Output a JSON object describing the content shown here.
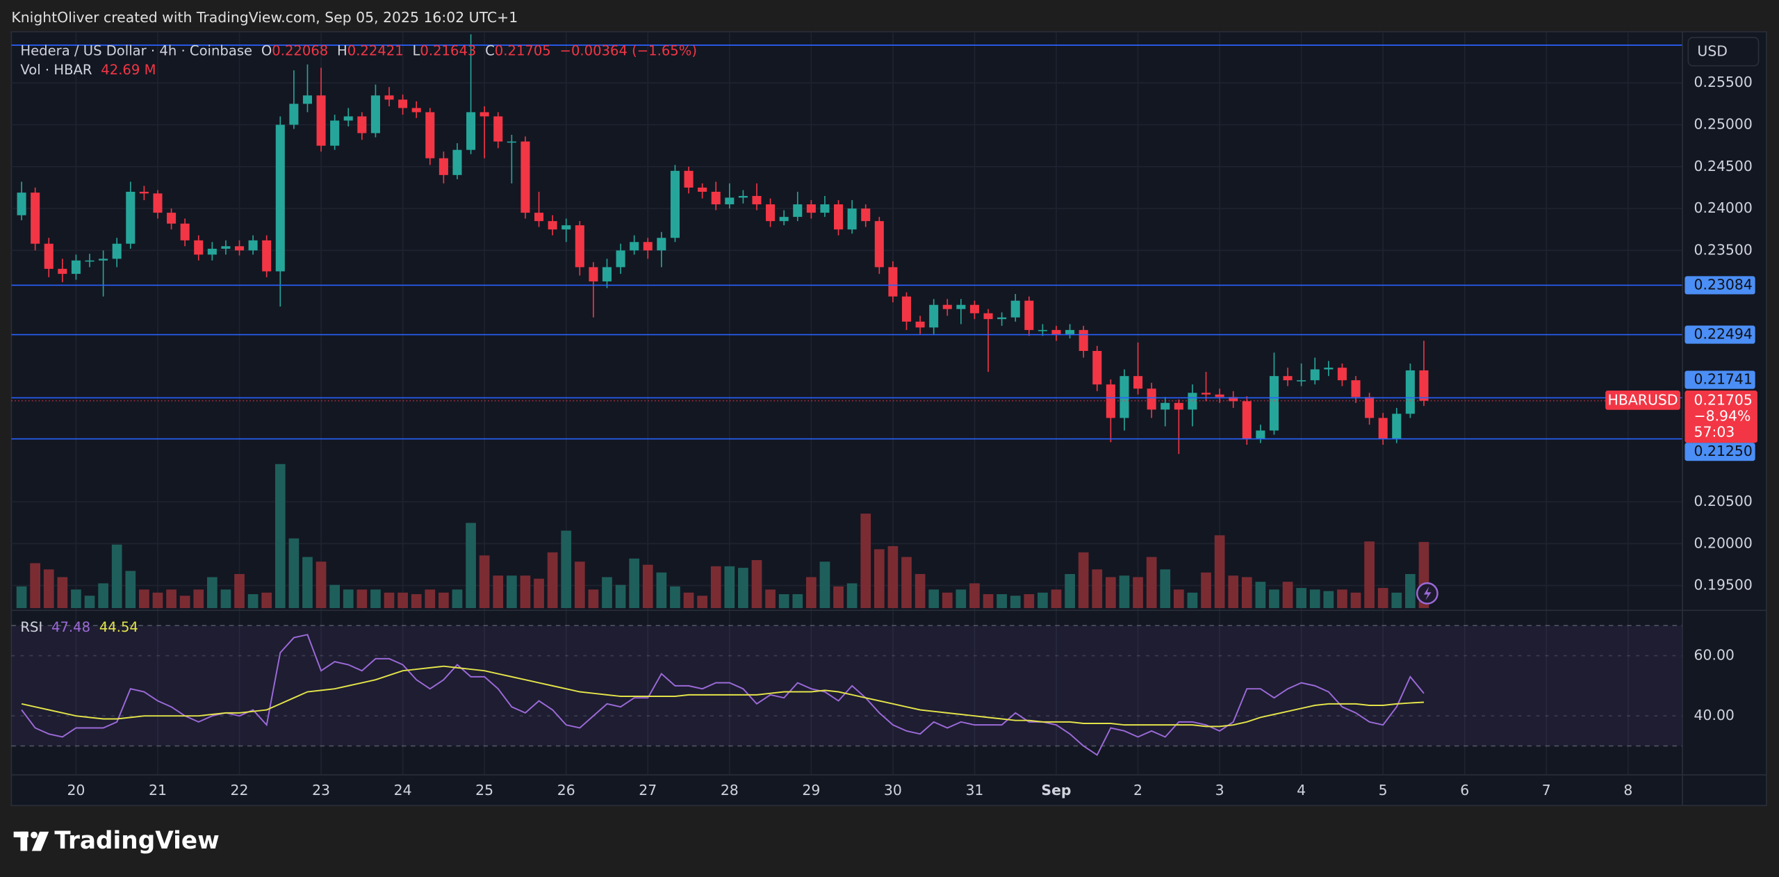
{
  "header": {
    "attribution": "KnightOliver created with TradingView.com, Sep 05, 2025 16:02 UTC+1"
  },
  "footer": {
    "logo": "TradingView"
  },
  "chart_data": {
    "type": "candlestick",
    "title": "Hedera / US Dollar · 4h · Coinbase",
    "ohlc_letters": [
      "O",
      "H",
      "L",
      "C"
    ],
    "change": "−0.00364 (−1.65%)",
    "currency": "USD",
    "symbol": "HBARUSD",
    "last_change": "−8.94%",
    "countdown": "57:03",
    "up_color": "#26a69a",
    "down_color": "#f23645",
    "line_color": "#2962ff",
    "grid": true,
    "xlim": [
      -19,
      472
    ],
    "ylim": [
      0.1923,
      0.2611
    ],
    "xticks": [
      {
        "value": 0,
        "label": "20"
      },
      {
        "value": 24,
        "label": "21"
      },
      {
        "value": 48,
        "label": "22"
      },
      {
        "value": 72,
        "label": "23"
      },
      {
        "value": 96,
        "label": "24"
      },
      {
        "value": 120,
        "label": "25"
      },
      {
        "value": 144,
        "label": "26"
      },
      {
        "value": 168,
        "label": "27"
      },
      {
        "value": 192,
        "label": "28"
      },
      {
        "value": 216,
        "label": "29"
      },
      {
        "value": 240,
        "label": "30"
      },
      {
        "value": 264,
        "label": "31"
      },
      {
        "value": 288,
        "label": "Sep"
      },
      {
        "value": 312,
        "label": "2"
      },
      {
        "value": 336,
        "label": "3"
      },
      {
        "value": 360,
        "label": "4"
      },
      {
        "value": 384,
        "label": "5"
      },
      {
        "value": 408,
        "label": "6"
      },
      {
        "value": 432,
        "label": "7"
      },
      {
        "value": 456,
        "label": "8"
      }
    ],
    "yticks": [
      {
        "value": 0.255,
        "label": "0.25500"
      },
      {
        "value": 0.25,
        "label": "0.25000"
      },
      {
        "value": 0.245,
        "label": "0.24500"
      },
      {
        "value": 0.24,
        "label": "0.24000"
      },
      {
        "value": 0.235,
        "label": "0.23500"
      },
      {
        "value": 0.205,
        "label": "0.20500"
      },
      {
        "value": 0.2,
        "label": "0.20000"
      },
      {
        "value": 0.195,
        "label": "0.19500"
      }
    ],
    "horizontal_lines": [
      {
        "value": 0.2595
      },
      {
        "value": 0.23084,
        "label": "0.23084"
      },
      {
        "value": 0.22494,
        "label": "0.22494"
      },
      {
        "value": 0.21741,
        "label": "0.21741"
      },
      {
        "value": 0.2125,
        "label": "0.21250"
      }
    ],
    "x": [
      -16,
      -12,
      -8,
      -4,
      0,
      4,
      8,
      12,
      16,
      20,
      24,
      28,
      32,
      36,
      40,
      44,
      48,
      52,
      56,
      60,
      64,
      68,
      72,
      76,
      80,
      84,
      88,
      92,
      96,
      100,
      104,
      108,
      112,
      116,
      120,
      124,
      128,
      132,
      136,
      140,
      144,
      148,
      152,
      156,
      160,
      164,
      168,
      172,
      176,
      180,
      184,
      188,
      192,
      196,
      200,
      204,
      208,
      212,
      216,
      220,
      224,
      228,
      232,
      236,
      240,
      244,
      248,
      252,
      256,
      260,
      264,
      268,
      272,
      276,
      280,
      284,
      288,
      292,
      296,
      300,
      304,
      308,
      312,
      316,
      320,
      324,
      328,
      332,
      336,
      340,
      344,
      348,
      352,
      356,
      360,
      364,
      368,
      372,
      376,
      380,
      384,
      388,
      392,
      396
    ],
    "open": [
      0.2392,
      0.2419,
      0.2358,
      0.2328,
      0.2322,
      0.2338,
      0.2338,
      0.234,
      0.2358,
      0.242,
      0.2418,
      0.2395,
      0.2382,
      0.2362,
      0.2345,
      0.2352,
      0.2355,
      0.235,
      0.2362,
      0.2325,
      0.25,
      0.2525,
      0.2535,
      0.2475,
      0.2505,
      0.251,
      0.249,
      0.2535,
      0.253,
      0.252,
      0.2515,
      0.246,
      0.244,
      0.247,
      0.2515,
      0.251,
      0.248,
      0.248,
      0.2395,
      0.2385,
      0.2375,
      0.238,
      0.233,
      0.2313,
      0.233,
      0.235,
      0.236,
      0.235,
      0.2365,
      0.2445,
      0.2425,
      0.242,
      0.2405,
      0.2413,
      0.2415,
      0.2405,
      0.2385,
      0.239,
      0.2405,
      0.2395,
      0.2405,
      0.2375,
      0.24,
      0.2385,
      0.233,
      0.2295,
      0.2265,
      0.2258,
      0.2285,
      0.228,
      0.2285,
      0.2275,
      0.2268,
      0.227,
      0.229,
      0.2255,
      0.2255,
      0.225,
      0.2255,
      0.223,
      0.219,
      0.215,
      0.22,
      0.2185,
      0.216,
      0.2168,
      0.216,
      0.218,
      0.2178,
      0.2175,
      0.217,
      0.2125,
      0.2135,
      0.22,
      0.2195,
      0.2195,
      0.2208,
      0.221,
      0.2195,
      0.2175,
      0.215,
      0.2125,
      0.2155,
      0.22068
    ],
    "high": [
      0.2432,
      0.2425,
      0.2365,
      0.234,
      0.2345,
      0.2346,
      0.235,
      0.2365,
      0.2432,
      0.2427,
      0.2422,
      0.24,
      0.2388,
      0.2368,
      0.236,
      0.2362,
      0.2362,
      0.2368,
      0.2368,
      0.251,
      0.2565,
      0.2572,
      0.2568,
      0.2512,
      0.252,
      0.2515,
      0.2548,
      0.2545,
      0.2536,
      0.2528,
      0.252,
      0.2468,
      0.2478,
      0.2608,
      0.2522,
      0.2515,
      0.2488,
      0.2486,
      0.242,
      0.2392,
      0.2388,
      0.2385,
      0.2336,
      0.234,
      0.2358,
      0.2368,
      0.2365,
      0.2372,
      0.2452,
      0.245,
      0.243,
      0.2432,
      0.243,
      0.2422,
      0.243,
      0.2412,
      0.2398,
      0.242,
      0.241,
      0.2415,
      0.241,
      0.241,
      0.2405,
      0.239,
      0.2337,
      0.23,
      0.2272,
      0.2292,
      0.2292,
      0.2292,
      0.229,
      0.228,
      0.2276,
      0.2298,
      0.2295,
      0.2262,
      0.226,
      0.2262,
      0.226,
      0.2236,
      0.2196,
      0.2208,
      0.224,
      0.2192,
      0.2175,
      0.2172,
      0.219,
      0.2205,
      0.2185,
      0.2182,
      0.2176,
      0.2142,
      0.2228,
      0.221,
      0.2215,
      0.2222,
      0.2218,
      0.2215,
      0.22,
      0.218,
      0.2156,
      0.2162,
      0.2215,
      0.22421
    ],
    "low": [
      0.2386,
      0.235,
      0.2318,
      0.2312,
      0.2315,
      0.233,
      0.2295,
      0.233,
      0.2352,
      0.241,
      0.2388,
      0.2375,
      0.2355,
      0.2338,
      0.2338,
      0.2345,
      0.2344,
      0.2345,
      0.2318,
      0.2283,
      0.2495,
      0.2515,
      0.2468,
      0.247,
      0.2498,
      0.2482,
      0.2485,
      0.2522,
      0.2512,
      0.2508,
      0.2452,
      0.243,
      0.2435,
      0.2465,
      0.246,
      0.2472,
      0.243,
      0.2388,
      0.2378,
      0.2368,
      0.236,
      0.232,
      0.227,
      0.2305,
      0.2322,
      0.2345,
      0.234,
      0.233,
      0.236,
      0.2418,
      0.2412,
      0.2398,
      0.24,
      0.2406,
      0.2398,
      0.2378,
      0.238,
      0.2385,
      0.2388,
      0.239,
      0.2368,
      0.237,
      0.2378,
      0.2322,
      0.2288,
      0.2255,
      0.225,
      0.225,
      0.2272,
      0.2262,
      0.2268,
      0.2205,
      0.226,
      0.2265,
      0.2248,
      0.2248,
      0.2242,
      0.2245,
      0.2222,
      0.2182,
      0.2121,
      0.2135,
      0.2178,
      0.215,
      0.214,
      0.2107,
      0.214,
      0.217,
      0.2168,
      0.2162,
      0.2118,
      0.212,
      0.213,
      0.2188,
      0.2188,
      0.219,
      0.22,
      0.2188,
      0.2168,
      0.2142,
      0.2118,
      0.212,
      0.215,
      0.21643
    ],
    "close": [
      0.2419,
      0.2358,
      0.2328,
      0.2322,
      0.2338,
      0.2338,
      0.234,
      0.2358,
      0.242,
      0.2418,
      0.2395,
      0.2382,
      0.2362,
      0.2345,
      0.2352,
      0.2355,
      0.235,
      0.2362,
      0.2325,
      0.25,
      0.2525,
      0.2535,
      0.2475,
      0.2505,
      0.251,
      0.249,
      0.2535,
      0.253,
      0.252,
      0.2515,
      0.246,
      0.244,
      0.247,
      0.2515,
      0.251,
      0.248,
      0.248,
      0.2395,
      0.2385,
      0.2375,
      0.238,
      0.233,
      0.2313,
      0.233,
      0.235,
      0.236,
      0.235,
      0.2365,
      0.2445,
      0.2425,
      0.242,
      0.2405,
      0.2413,
      0.2415,
      0.2405,
      0.2385,
      0.239,
      0.2405,
      0.2395,
      0.2405,
      0.2375,
      0.24,
      0.2385,
      0.233,
      0.2295,
      0.2265,
      0.2258,
      0.2285,
      0.228,
      0.2285,
      0.2275,
      0.2268,
      0.227,
      0.229,
      0.2255,
      0.2255,
      0.225,
      0.2255,
      0.223,
      0.219,
      0.215,
      0.22,
      0.2185,
      0.216,
      0.2168,
      0.216,
      0.218,
      0.2178,
      0.2175,
      0.217,
      0.2125,
      0.2135,
      0.22,
      0.2195,
      0.2195,
      0.2208,
      0.221,
      0.2195,
      0.2175,
      0.215,
      0.2125,
      0.2155,
      0.22068,
      0.21705
    ],
    "volume": {
      "name": "Vol · HBAR",
      "last_value_label": "42.69 M",
      "up_color": "#1f5f5b",
      "down_color": "#7b2c33",
      "values": [
        14,
        29,
        25,
        20,
        12,
        8,
        16,
        41,
        24,
        12,
        10,
        12,
        8,
        12,
        20,
        12,
        22,
        9,
        10,
        93,
        45,
        33,
        30,
        15,
        12,
        12,
        12,
        10,
        10,
        9,
        12,
        10,
        12,
        55,
        34,
        21,
        21,
        21,
        19,
        36,
        50,
        30,
        12,
        20,
        15,
        32,
        28,
        23,
        14,
        10,
        8,
        27,
        27,
        26,
        31,
        12,
        9,
        9,
        20,
        30,
        14,
        16,
        61,
        38,
        40,
        33,
        22,
        12,
        10,
        12,
        16,
        9,
        9,
        8,
        9,
        10,
        12,
        22,
        36,
        25,
        20,
        21,
        20,
        33,
        25,
        12,
        10,
        23,
        47,
        21,
        20,
        17,
        12,
        17,
        13,
        12,
        11,
        12,
        10,
        43,
        13,
        10,
        22,
        42.69
      ]
    },
    "rsi": {
      "type": "line",
      "ylim": [
        20.4,
        74.3
      ],
      "yticks": [
        {
          "value": 60,
          "label": "60.00"
        },
        {
          "value": 40,
          "label": "40.00"
        }
      ],
      "bands": [
        70,
        30
      ],
      "series": [
        {
          "name": "RSI",
          "color": "#9c6ad8",
          "values": [
            42,
            36,
            34,
            33,
            36,
            36,
            36,
            38,
            49,
            48,
            45,
            43,
            40,
            38,
            40,
            41,
            40,
            42,
            37,
            61,
            66,
            67,
            55,
            58,
            57,
            55,
            59,
            59,
            57,
            52,
            49,
            52,
            57,
            53,
            53,
            49,
            43,
            41,
            45,
            42,
            37,
            36,
            40,
            44,
            43,
            46,
            46,
            54,
            50,
            50,
            49,
            51,
            51,
            49,
            44,
            47,
            46,
            51,
            49,
            48,
            45,
            50,
            46,
            41,
            37,
            35,
            34,
            38,
            36,
            38,
            37,
            37,
            37,
            41,
            38,
            38,
            37,
            34,
            30,
            27,
            36,
            35,
            33,
            35,
            33,
            38,
            38,
            37,
            35,
            38,
            49,
            49,
            46,
            49,
            51,
            50,
            48,
            43,
            41,
            38,
            37,
            43,
            53,
            47.48
          ]
        },
        {
          "color": "#e4e44a",
          "values": [
            44,
            43,
            42,
            41,
            40,
            39.5,
            39,
            39,
            39.5,
            40,
            40,
            40,
            40,
            40,
            40.5,
            41,
            41,
            41.5,
            42,
            44,
            46,
            48,
            48.5,
            49,
            50,
            51,
            52,
            53.5,
            55,
            55.5,
            56,
            56.5,
            56,
            55.5,
            55,
            54,
            53,
            52,
            51,
            50,
            49,
            48,
            47.5,
            47,
            46.5,
            46.5,
            46.5,
            46.5,
            46.5,
            47,
            47,
            47,
            47,
            47,
            47,
            47.5,
            48,
            48,
            48,
            48.5,
            48,
            47,
            46,
            45,
            44,
            43,
            42,
            41.5,
            41,
            40.5,
            40,
            39.5,
            39,
            38.5,
            38.5,
            38,
            38,
            38,
            37.5,
            37.5,
            37.5,
            37,
            37,
            37,
            37,
            37,
            37,
            36.5,
            36.5,
            37,
            38,
            39.5,
            40.5,
            41.5,
            42.5,
            43.5,
            44,
            44,
            44,
            43.5,
            43.5,
            44,
            44.3,
            44.54
          ]
        }
      ]
    }
  }
}
